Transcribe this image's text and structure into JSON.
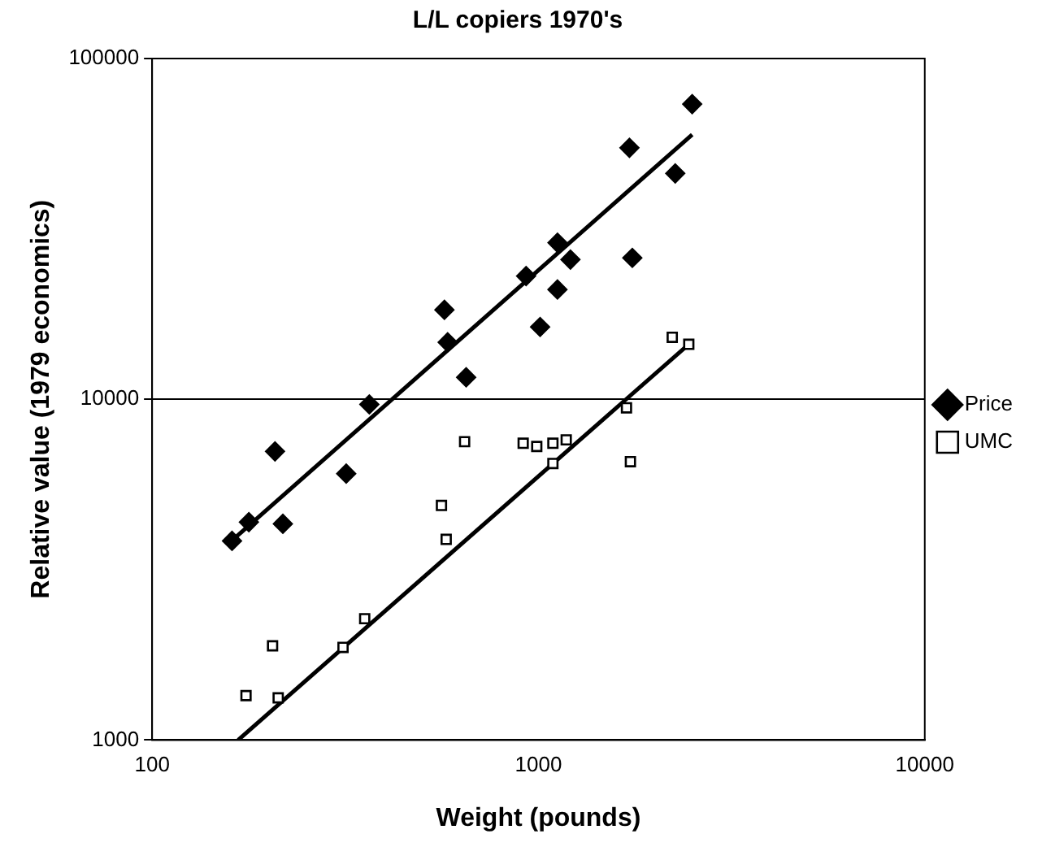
{
  "chart_data": {
    "type": "scatter",
    "title": "L/L copiers 1970's",
    "xlabel": "Weight (pounds)",
    "ylabel": "Relative value (1979 economics)",
    "log": "xy",
    "grid": "y",
    "legend": "right",
    "xlim": [
      100,
      10000
    ],
    "xticks": [
      100,
      1000,
      10000
    ],
    "ylim": [
      1000,
      100000
    ],
    "yticks": [
      1000,
      10000,
      100000
    ],
    "series": [
      {
        "name": "Price",
        "color": "#000000",
        "marker": "diamond",
        "x": [
          161,
          178,
          208,
          218,
          318,
          365,
          571,
          582,
          650,
          929,
          1010,
          1120,
          1120,
          1210,
          1720,
          1750,
          2260,
          2500
        ],
        "values": [
          3840,
          4360,
          7030,
          4310,
          6050,
          9660,
          18300,
          14700,
          11600,
          23000,
          16300,
          28800,
          21000,
          25700,
          54700,
          26000,
          46000,
          73500
        ]
      },
      {
        "name": "UMC",
        "color": "#000000",
        "marker": "square",
        "x": [
          175,
          205,
          212,
          312,
          355,
          561,
          577,
          644,
          913,
          990,
          1090,
          1090,
          1180,
          1690,
          1730,
          2220,
          2450
        ],
        "values": [
          1350,
          1890,
          1330,
          1870,
          2270,
          4880,
          3880,
          7510,
          7430,
          7270,
          7430,
          6480,
          7600,
          9440,
          6560,
          15200,
          14500
        ]
      },
      {
        "type": "line",
        "color": "#000000",
        "marker": "none",
        "x": [
          161,
          2500
        ],
        "values": [
          3850,
          59800
        ]
      },
      {
        "type": "line",
        "color": "#000000",
        "marker": "none",
        "x": [
          167,
          2500
        ],
        "values": [
          1000,
          14800
        ]
      }
    ]
  }
}
